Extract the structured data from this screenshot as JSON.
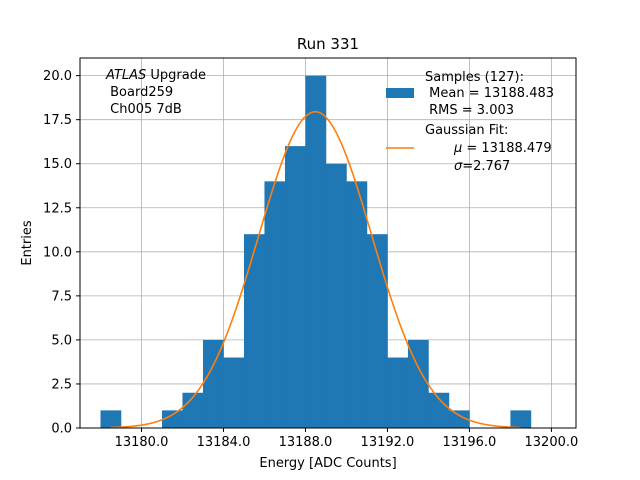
{
  "chart_data": {
    "type": "bar",
    "title": "Run 331",
    "xlabel": "Energy [ADC Counts]",
    "ylabel": "Entries",
    "xlim": [
      13177.0,
      13201.2
    ],
    "ylim": [
      0,
      21
    ],
    "grid": true,
    "legend_position": "top-right",
    "bar_color": "#1f77b4",
    "fit_color": "#ff7f0e",
    "bin_width": 1.0,
    "bins": [
      {
        "x": 13178.0,
        "count": 1
      },
      {
        "x": 13181.0,
        "count": 1
      },
      {
        "x": 13182.0,
        "count": 2
      },
      {
        "x": 13183.0,
        "count": 5
      },
      {
        "x": 13184.0,
        "count": 4
      },
      {
        "x": 13185.0,
        "count": 11
      },
      {
        "x": 13186.0,
        "count": 14
      },
      {
        "x": 13187.0,
        "count": 16
      },
      {
        "x": 13188.0,
        "count": 20
      },
      {
        "x": 13189.0,
        "count": 15
      },
      {
        "x": 13190.0,
        "count": 14
      },
      {
        "x": 13191.0,
        "count": 11
      },
      {
        "x": 13192.0,
        "count": 4
      },
      {
        "x": 13193.0,
        "count": 5
      },
      {
        "x": 13194.0,
        "count": 2
      },
      {
        "x": 13195.0,
        "count": 1
      },
      {
        "x": 13198.0,
        "count": 1
      }
    ],
    "fit": {
      "mu": 13188.479,
      "sigma": 2.767,
      "amplitude": 17.95,
      "x_range": [
        13178.5,
        13198.5
      ]
    },
    "x_ticks": [
      {
        "value": 13180.0,
        "label": "13180.0"
      },
      {
        "value": 13184.0,
        "label": "13184.0"
      },
      {
        "value": 13188.0,
        "label": "13188.0"
      },
      {
        "value": 13192.0,
        "label": "13192.0"
      },
      {
        "value": 13196.0,
        "label": "13196.0"
      },
      {
        "value": 13200.0,
        "label": "13200.0"
      }
    ],
    "y_ticks": [
      {
        "value": 0.0,
        "label": "0.0"
      },
      {
        "value": 2.5,
        "label": "2.5"
      },
      {
        "value": 5.0,
        "label": "5.0"
      },
      {
        "value": 7.5,
        "label": "7.5"
      },
      {
        "value": 10.0,
        "label": "10.0"
      },
      {
        "value": 12.5,
        "label": "12.5"
      },
      {
        "value": 15.0,
        "label": "15.0"
      },
      {
        "value": 17.5,
        "label": "17.5"
      },
      {
        "value": 20.0,
        "label": "20.0"
      }
    ],
    "annotation": {
      "atlas": "ATLAS",
      "line1_rest": " Upgrade",
      "line2": " Board259",
      "line3": " Ch005 7dB"
    },
    "legend": {
      "samples_line1": "Samples (127):",
      "samples_line2": " Mean = 13188.483",
      "samples_line3": " RMS = 3.003",
      "fit_line1": "Gaussian Fit:",
      "fit_mu_symbol": "μ",
      "fit_mu_text": " = 13188.479",
      "fit_sigma_symbol": "σ",
      "fit_sigma_text": "=2.767"
    }
  }
}
